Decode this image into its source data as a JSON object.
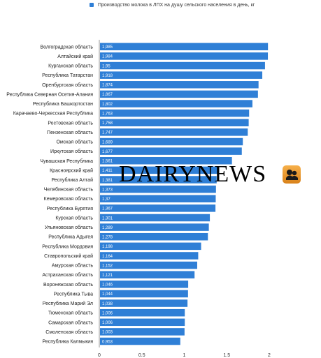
{
  "legend": {
    "label": "Производство молока в ЛПХ на душу сельского населения в день, кг",
    "color": "#2f7fd6"
  },
  "watermark": {
    "text": "DAIRYNEWS",
    "logo_icon": "dairynews-logo-icon"
  },
  "chart_data": {
    "type": "bar",
    "orientation": "horizontal",
    "categories": [
      "Волгоградская область",
      "Алтайский край",
      "Курганская область",
      "Республика Татарстан",
      "Оренбургская область",
      "Республика Северная Осетия-Алания",
      "Республика Башкортостан",
      "Карачаево-Черкесская Республика",
      "Ростовская область",
      "Пензенская область",
      "Омская область",
      "Иркутская область",
      "Чувашская Республика",
      "Красноярский край",
      "Республика Алтай",
      "Челябинская область",
      "Кемеровская область",
      "Республика Бурятия",
      "Курская область",
      "Ульяновская область",
      "Республика Адыгея",
      "Республика Мордовия",
      "Ставропольский край",
      "Амурская область",
      "Астраханская область",
      "Воронежская область",
      "Республика Тыва",
      "Республика Марий Эл",
      "Тюменская область",
      "Самарская область",
      "Смоленская область",
      "Республика Калмыкия"
    ],
    "values": [
      1.985,
      1.984,
      1.95,
      1.918,
      1.874,
      1.867,
      1.802,
      1.763,
      1.758,
      1.747,
      1.689,
      1.677,
      1.561,
      1.411,
      1.381,
      1.373,
      1.37,
      1.367,
      1.301,
      1.289,
      1.278,
      1.198,
      1.164,
      1.152,
      1.121,
      1.046,
      1.044,
      1.038,
      1.006,
      1.006,
      1.003,
      0.953
    ],
    "value_labels": [
      "1,985",
      "1,984",
      "1,95",
      "1,918",
      "1,874",
      "1,867",
      "1,802",
      "1,763",
      "1,758",
      "1,747",
      "1,689",
      "1,677",
      "1,561",
      "1,411",
      "1,381",
      "1,373",
      "1,37",
      "1,367",
      "1,301",
      "1,289",
      "1,278",
      "1,198",
      "1,164",
      "1,152",
      "1,121",
      "1,046",
      "1,044",
      "1,038",
      "1,006",
      "1,006",
      "1,003",
      "0,953"
    ],
    "xticks": [
      "0",
      "0.5",
      "1",
      "1.5",
      "2"
    ],
    "xlim": [
      0,
      2
    ],
    "legend_position": "top",
    "grid": false,
    "bar_color": "#2f7fd6"
  }
}
